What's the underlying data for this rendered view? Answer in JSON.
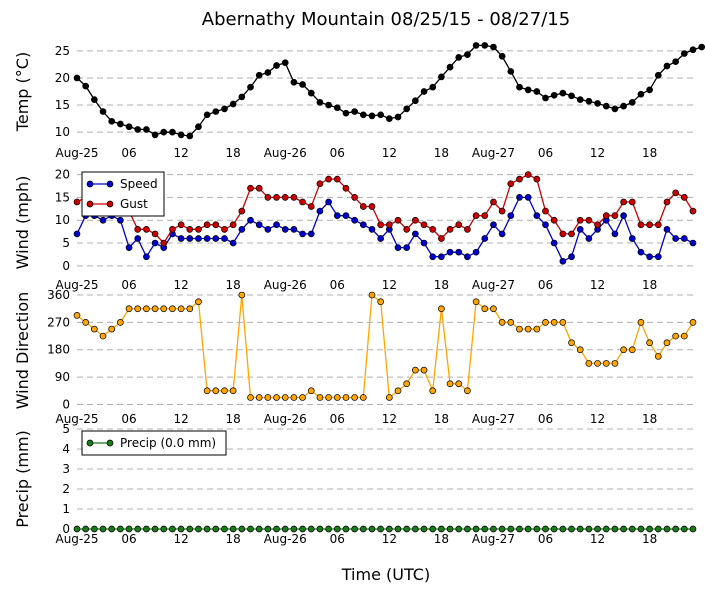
{
  "title": "Abernathy Mountain 08/25/15 - 08/27/15",
  "xlabel": "Time (UTC)",
  "x_tick_labels": [
    "Aug-25",
    "06",
    "12",
    "18",
    "Aug-26",
    "06",
    "12",
    "18",
    "Aug-27",
    "06",
    "12",
    "18"
  ],
  "colors": {
    "temp": "#000000",
    "speed": "#0000cc",
    "gust": "#cc0000",
    "direction": "#ffa500",
    "precip": "#1a7a1a"
  },
  "chart_data": [
    {
      "type": "line",
      "ylabel": "Temp (°C)",
      "ylim": [
        8,
        27
      ],
      "yticks": [
        10,
        15,
        20,
        25
      ],
      "xlim": [
        0,
        71
      ],
      "grid": true,
      "series": [
        {
          "values": [
            20,
            18.5,
            16,
            13.8,
            12,
            11.5,
            11,
            10.5,
            10.5,
            9.5,
            10,
            10,
            9.5,
            9.3,
            11,
            13.2,
            13.8,
            14.3,
            15.2,
            16.5,
            18.3,
            20.5,
            21,
            22.3,
            22.8,
            19.2,
            18.8,
            17.2,
            15.5,
            15,
            14.5,
            13.5,
            13.8,
            13.2,
            13,
            13.2,
            12.5,
            12.8,
            14.3,
            15.8,
            17.5,
            18.3,
            20.2,
            22,
            23.8,
            24.3,
            26,
            26,
            25.7,
            24,
            21.2,
            18.3,
            17.8,
            17.5,
            16.3,
            16.8,
            17.2,
            16.7,
            16,
            15.7,
            15.3,
            14.8,
            14.3,
            14.8,
            15.5,
            17,
            17.8,
            20.5,
            22.2,
            23,
            24.5,
            25.2,
            25.7
          ]
        }
      ]
    },
    {
      "type": "line",
      "ylabel": "Wind (mph)",
      "ylim": [
        -2,
        21
      ],
      "yticks": [
        0,
        5,
        10,
        15,
        20
      ],
      "xlim": [
        0,
        71
      ],
      "grid": true,
      "legend": "top-left",
      "series": [
        {
          "name": "Speed",
          "values": [
            7,
            11,
            11,
            10,
            11,
            10,
            4,
            6,
            2,
            5,
            4,
            7,
            6,
            6,
            6,
            6,
            6,
            6,
            5,
            8,
            10,
            9,
            8,
            9,
            8,
            8,
            7,
            7,
            12,
            14,
            11,
            11,
            10,
            9,
            8,
            6,
            8,
            4,
            4,
            7,
            5,
            2,
            2,
            3,
            3,
            2,
            3,
            6,
            9,
            7,
            11,
            15,
            15,
            11,
            9,
            5,
            1,
            2,
            8,
            6,
            8,
            10,
            7,
            11,
            6,
            3,
            2,
            2,
            8,
            6,
            6,
            5
          ]
        },
        {
          "name": "Gust",
          "values": [
            14,
            15,
            14,
            13,
            13,
            12,
            12,
            8,
            8,
            7,
            5,
            8,
            9,
            8,
            8,
            9,
            9,
            8,
            9,
            12,
            17,
            17,
            15,
            15,
            15,
            15,
            14,
            13,
            18,
            19,
            19,
            17,
            15,
            13,
            13,
            9,
            9,
            10,
            8,
            10,
            9,
            8,
            6,
            8,
            9,
            8,
            11,
            11,
            14,
            12,
            18,
            19,
            20,
            19,
            12,
            10,
            7,
            7,
            10,
            10,
            9,
            11,
            11,
            14,
            14,
            9,
            9,
            9,
            14,
            16,
            15,
            12
          ]
        }
      ]
    },
    {
      "type": "line",
      "ylabel": "Wind Direction",
      "ylim": [
        -15,
        370
      ],
      "yticks": [
        0,
        90,
        180,
        270,
        360
      ],
      "xlim": [
        0,
        71
      ],
      "grid": true,
      "series": [
        {
          "values": [
            293,
            270,
            248,
            225,
            248,
            270,
            315,
            315,
            315,
            315,
            315,
            315,
            315,
            315,
            338,
            45,
            45,
            45,
            45,
            360,
            23,
            23,
            23,
            23,
            23,
            23,
            23,
            45,
            23,
            23,
            23,
            23,
            23,
            23,
            360,
            338,
            23,
            45,
            68,
            113,
            113,
            45,
            315,
            68,
            68,
            45,
            338,
            315,
            315,
            270,
            270,
            248,
            248,
            248,
            270,
            270,
            270,
            203,
            180,
            135,
            135,
            135,
            135,
            180,
            180,
            270,
            203,
            158,
            203,
            225,
            225,
            270
          ]
        }
      ]
    },
    {
      "type": "line",
      "ylabel": "Precip (mm)",
      "ylim": [
        0,
        5
      ],
      "yticks": [
        0,
        1,
        2,
        3,
        4,
        5
      ],
      "xlim": [
        0,
        71
      ],
      "grid": true,
      "legend": "top-left",
      "series": [
        {
          "name": "Precip (0.0 mm)",
          "values": [
            0,
            0,
            0,
            0,
            0,
            0,
            0,
            0,
            0,
            0,
            0,
            0,
            0,
            0,
            0,
            0,
            0,
            0,
            0,
            0,
            0,
            0,
            0,
            0,
            0,
            0,
            0,
            0,
            0,
            0,
            0,
            0,
            0,
            0,
            0,
            0,
            0,
            0,
            0,
            0,
            0,
            0,
            0,
            0,
            0,
            0,
            0,
            0,
            0,
            0,
            0,
            0,
            0,
            0,
            0,
            0,
            0,
            0,
            0,
            0,
            0,
            0,
            0,
            0,
            0,
            0,
            0,
            0,
            0,
            0,
            0,
            0
          ]
        }
      ]
    }
  ]
}
